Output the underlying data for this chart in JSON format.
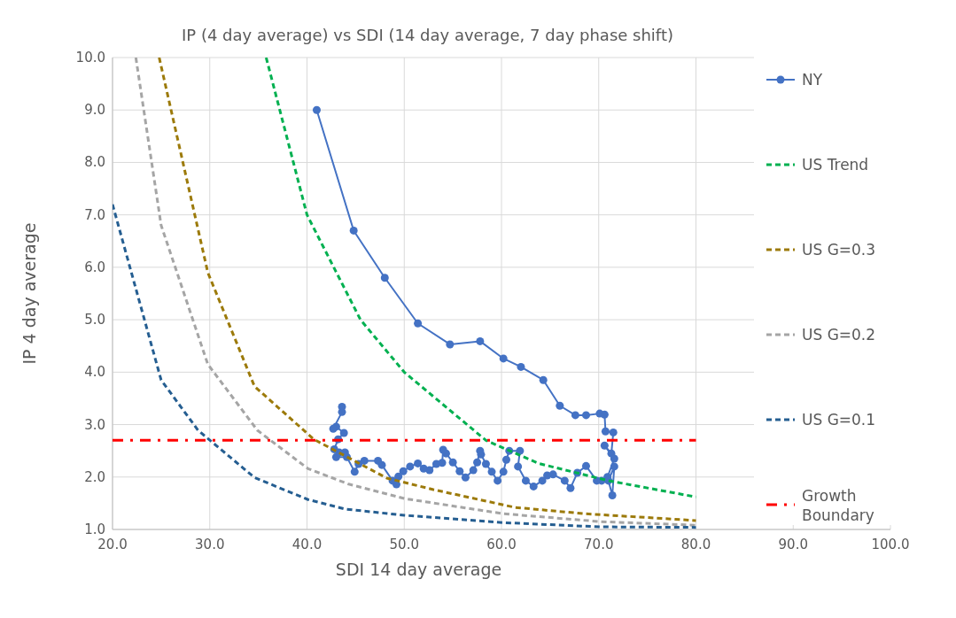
{
  "chart_data": {
    "type": "line",
    "title": "IP (4 day average) vs SDI (14 day average, 7 day phase shift)",
    "xlabel": "SDI 14 day average",
    "ylabel": "IP 4 day average",
    "xlim": [
      20,
      100
    ],
    "ylim": [
      1,
      10
    ],
    "xticks": [
      {
        "value": 20,
        "label": "20.0"
      },
      {
        "value": 30,
        "label": "30.0"
      },
      {
        "value": 40,
        "label": "40.0"
      },
      {
        "value": 50,
        "label": "50.0"
      },
      {
        "value": 60,
        "label": "60.0"
      },
      {
        "value": 70,
        "label": "70.0"
      },
      {
        "value": 80,
        "label": "80.0"
      },
      {
        "value": 90,
        "label": "90.0"
      },
      {
        "value": 100,
        "label": "100.0"
      }
    ],
    "yticks": [
      {
        "value": 1,
        "label": "1.0"
      },
      {
        "value": 2,
        "label": "2.0"
      },
      {
        "value": 3,
        "label": "3.0"
      },
      {
        "value": 4,
        "label": "4.0"
      },
      {
        "value": 5,
        "label": "5.0"
      },
      {
        "value": 6,
        "label": "6.0"
      },
      {
        "value": 7,
        "label": "7.0"
      },
      {
        "value": 8,
        "label": "8.0"
      },
      {
        "value": 9,
        "label": "9.0"
      },
      {
        "value": 10,
        "label": "10.0"
      }
    ],
    "grid": true,
    "legend": "right",
    "series": [
      {
        "name": "NY",
        "color": "#4472c4",
        "marker": "circle",
        "line_style": "solid",
        "x": [
          41.0,
          44.8,
          48.0,
          51.4,
          54.7,
          57.8,
          60.2,
          62.0,
          64.3,
          66.0,
          67.6,
          68.7,
          70.1,
          70.6,
          70.7,
          71.5,
          71.3,
          70.6,
          71.6,
          70.9,
          71.4,
          71.6,
          71.0,
          70.3,
          69.8,
          68.7,
          67.8,
          67.1,
          66.5,
          65.3,
          64.7,
          64.2,
          63.3,
          62.5,
          61.7,
          61.9,
          60.8,
          60.5,
          60.2,
          59.6,
          59.0,
          58.4,
          57.9,
          57.8,
          57.5,
          57.1,
          56.3,
          55.7,
          55.0,
          54.3,
          54.0,
          53.9,
          53.3,
          52.6,
          52.0,
          51.4,
          50.6,
          49.9,
          49.4,
          49.2,
          48.8,
          47.7,
          47.3,
          45.9,
          45.3,
          44.9,
          44.1,
          43.0,
          43.9,
          43.3,
          42.8,
          43.2,
          43.8,
          43.0,
          42.7,
          43.6,
          43.6
        ],
        "values": [
          9.0,
          6.7,
          5.8,
          4.93,
          4.53,
          4.59,
          4.26,
          4.1,
          3.85,
          3.36,
          3.18,
          3.18,
          3.21,
          3.19,
          2.87,
          2.85,
          2.45,
          2.6,
          2.35,
          2.0,
          1.65,
          2.2,
          1.93,
          1.93,
          1.93,
          2.21,
          2.08,
          1.79,
          1.93,
          2.05,
          2.03,
          1.93,
          1.82,
          1.93,
          2.2,
          2.5,
          2.5,
          2.33,
          2.1,
          1.93,
          2.1,
          2.25,
          2.43,
          2.5,
          2.28,
          2.13,
          1.99,
          2.11,
          2.28,
          2.45,
          2.52,
          2.27,
          2.25,
          2.13,
          2.16,
          2.26,
          2.2,
          2.11,
          2.01,
          1.86,
          1.93,
          2.23,
          2.31,
          2.31,
          2.25,
          2.1,
          2.38,
          2.38,
          2.47,
          2.47,
          2.53,
          2.72,
          2.84,
          2.96,
          2.92,
          3.24,
          3.34
        ]
      },
      {
        "name": "US Trend",
        "color": "#00b050",
        "marker": "none",
        "line_style": "dashed",
        "x": [
          35.8,
          40.0,
          45.5,
          50.0,
          58.4,
          63.8,
          71.0,
          80.0
        ],
        "values": [
          10.0,
          7.0,
          5.0,
          4.0,
          2.7,
          2.26,
          1.93,
          1.62
        ]
      },
      {
        "name": "US G=0.3",
        "color": "#9c7a0a",
        "marker": "none",
        "line_style": "dashed",
        "x": [
          24.8,
          29.8,
          34.6,
          40.7,
          48.2,
          53.0,
          61.4,
          68.6,
          80.0
        ],
        "values": [
          10.0,
          5.9,
          3.73,
          2.72,
          1.98,
          1.76,
          1.42,
          1.3,
          1.17
        ]
      },
      {
        "name": "US G=0.2",
        "color": "#a5a5a5",
        "marker": "none",
        "line_style": "dashed",
        "x": [
          22.4,
          25.0,
          29.8,
          34.9,
          40.1,
          44.2,
          50.0,
          60.2,
          70.1,
          80.0
        ],
        "values": [
          10.0,
          6.8,
          4.15,
          2.89,
          2.16,
          1.87,
          1.59,
          1.3,
          1.15,
          1.08
        ]
      },
      {
        "name": "US G=0.1",
        "color": "#255e91",
        "marker": "none",
        "line_style": "dashed",
        "x": [
          20.0,
          25.0,
          28.8,
          34.6,
          40.1,
          43.9,
          50.0,
          60.2,
          70.1,
          80.0
        ],
        "values": [
          7.2,
          3.85,
          2.89,
          1.99,
          1.57,
          1.39,
          1.27,
          1.13,
          1.05,
          1.04
        ]
      },
      {
        "name": "Growth Boundary",
        "color": "#ff0000",
        "marker": "none",
        "line_style": "dashdot",
        "x": [
          20,
          80
        ],
        "values": [
          2.7,
          2.7
        ]
      }
    ]
  }
}
